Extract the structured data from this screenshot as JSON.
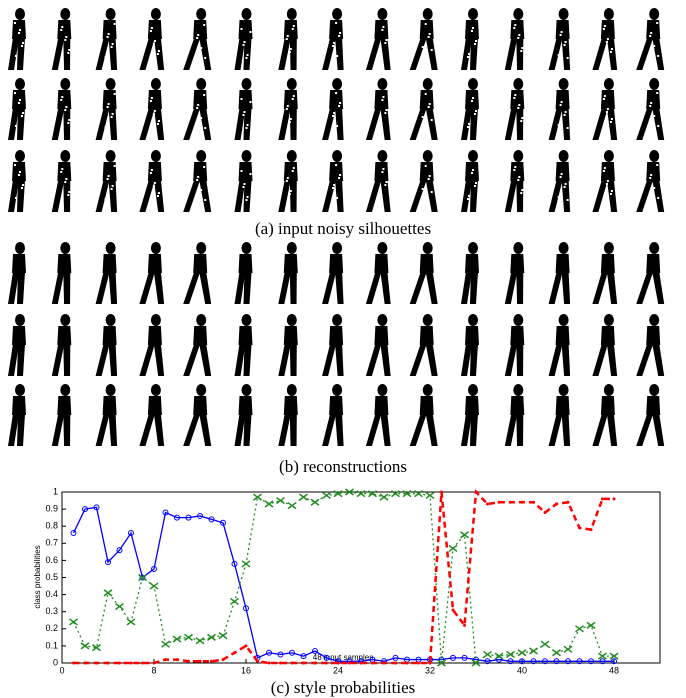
{
  "captions": [
    "(a) input noisy silhouettes",
    "(b) reconstructions"
  ],
  "chart_data": {
    "type": "line",
    "title": "(c) style probabilities",
    "x_label": "48 input samples",
    "y_label": "class probabilities",
    "x": [
      1,
      2,
      3,
      4,
      5,
      6,
      7,
      8,
      9,
      10,
      11,
      12,
      13,
      14,
      15,
      16,
      17,
      18,
      19,
      20,
      21,
      22,
      23,
      24,
      25,
      26,
      27,
      28,
      29,
      30,
      31,
      32,
      33,
      34,
      35,
      36,
      37,
      38,
      39,
      40,
      41,
      42,
      43,
      44,
      45,
      46,
      47,
      48
    ],
    "series": [
      {
        "color": "#0000ff",
        "dash": "",
        "marker": "circle",
        "values": [
          0.76,
          0.9,
          0.91,
          0.59,
          0.66,
          0.76,
          0.5,
          0.55,
          0.88,
          0.85,
          0.85,
          0.86,
          0.84,
          0.82,
          0.58,
          0.32,
          0.03,
          0.06,
          0.05,
          0.06,
          0.04,
          0.07,
          0.03,
          0.01,
          0.01,
          0.01,
          0.02,
          0.01,
          0.03,
          0.02,
          0.02,
          0.02,
          0.02,
          0.03,
          0.03,
          0.02,
          0.01,
          0.02,
          0.01,
          0.01,
          0.01,
          0.01,
          0.01,
          0.01,
          0.01,
          0.01,
          0.01,
          0.01
        ]
      },
      {
        "color": "#228b22",
        "dash": "2 3",
        "marker": "x",
        "values": [
          0.24,
          0.1,
          0.09,
          0.41,
          0.33,
          0.24,
          0.5,
          0.45,
          0.11,
          0.14,
          0.15,
          0.13,
          0.15,
          0.16,
          0.36,
          0.58,
          0.97,
          0.93,
          0.95,
          0.92,
          0.97,
          0.94,
          0.98,
          0.99,
          1.0,
          0.99,
          0.99,
          0.97,
          0.99,
          0.99,
          0.99,
          0.98,
          0.0,
          0.67,
          0.75,
          0.0,
          0.05,
          0.04,
          0.05,
          0.06,
          0.07,
          0.11,
          0.06,
          0.08,
          0.2,
          0.22,
          0.04,
          0.04
        ]
      },
      {
        "color": "#ff0000",
        "dash": "6 4",
        "marker": "dot",
        "values": [
          0,
          0,
          0,
          0,
          0,
          0,
          0,
          0,
          0.02,
          0.02,
          0.01,
          0.01,
          0.01,
          0.02,
          0.06,
          0.1,
          0.01,
          0,
          0,
          0,
          0,
          0,
          0,
          0,
          0,
          0,
          0,
          0,
          0,
          0,
          0,
          0,
          1.0,
          0.31,
          0.22,
          1.0,
          0.93,
          0.94,
          0.94,
          0.94,
          0.94,
          0.88,
          0.93,
          0.94,
          0.79,
          0.78,
          0.96,
          0.96
        ]
      }
    ],
    "xlim": [
      0,
      52
    ],
    "ylim": [
      0,
      1
    ],
    "xticks": [
      0,
      8,
      16,
      24,
      32,
      40,
      48
    ],
    "yticks": [
      0,
      0.1,
      0.2,
      0.3,
      0.4,
      0.5,
      0.6,
      0.7,
      0.8,
      0.9,
      1
    ]
  }
}
